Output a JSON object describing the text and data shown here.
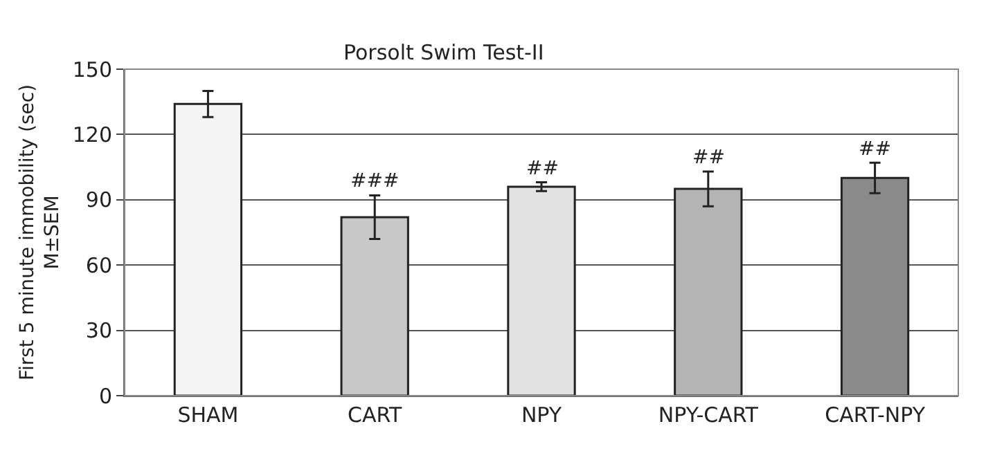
{
  "chart_data": {
    "type": "bar",
    "title": "Porsolt Swim Test-II",
    "ylabel": "First 5 minute immobility (sec)\nM±SEM",
    "categories": [
      "SHAM",
      "CART",
      "NPY",
      "NPY-CART",
      "CART-NPY"
    ],
    "values": [
      134,
      82,
      96,
      95,
      100
    ],
    "errors": [
      6,
      10,
      2,
      8,
      7
    ],
    "colors": [
      "#f4f4f4",
      "#c8c8c8",
      "#e2e2e2",
      "#b4b4b4",
      "#8a8a8a"
    ],
    "annotations": [
      {
        "text": "###",
        "x": "CART",
        "y": 92
      },
      {
        "text": "##",
        "x": "NPY",
        "y": 98
      },
      {
        "text": "##",
        "x": "NPY-CART",
        "y": 103
      },
      {
        "text": "##",
        "x": "CART-NPY",
        "y": 107
      }
    ],
    "ylim": [
      0,
      150
    ],
    "yticks": [
      0,
      30,
      60,
      90,
      120,
      150
    ],
    "grid": "y"
  }
}
